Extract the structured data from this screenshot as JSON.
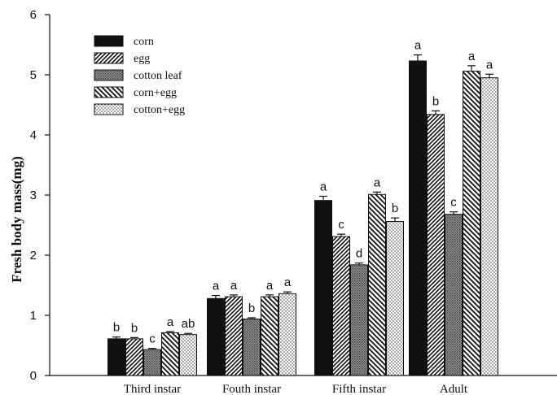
{
  "chart_data": {
    "type": "bar",
    "title": "",
    "xlabel": "",
    "ylabel": "Fresh body mass(mg)",
    "ylim": [
      0,
      6
    ],
    "yticks": [
      0,
      1,
      2,
      3,
      4,
      5,
      6
    ],
    "grid": false,
    "legend_position": "top-left",
    "categories": [
      "Third instar",
      "Fouth instar",
      "Fifth instar",
      "Adult"
    ],
    "series": [
      {
        "name": "corn",
        "pattern": "solid",
        "values": [
          0.61,
          1.28,
          2.91,
          5.23
        ],
        "errors": [
          0.03,
          0.05,
          0.07,
          0.1
        ],
        "letters": [
          "b",
          "a",
          "a",
          "a"
        ]
      },
      {
        "name": "egg",
        "pattern": "hatch-right",
        "values": [
          0.61,
          1.31,
          2.31,
          4.34
        ],
        "errors": [
          0.02,
          0.03,
          0.04,
          0.06
        ],
        "letters": [
          "b",
          "a",
          "c",
          "b"
        ]
      },
      {
        "name": "cotton leaf",
        "pattern": "crosshatch",
        "values": [
          0.43,
          0.94,
          1.84,
          2.68
        ],
        "errors": [
          0.02,
          0.02,
          0.03,
          0.04
        ],
        "letters": [
          "c",
          "b",
          "d",
          "c"
        ]
      },
      {
        "name": "corn+egg",
        "pattern": "hatch-left",
        "values": [
          0.71,
          1.31,
          3.01,
          5.06
        ],
        "errors": [
          0.02,
          0.03,
          0.04,
          0.09
        ],
        "letters": [
          "a",
          "a",
          "a",
          "a"
        ]
      },
      {
        "name": "cotton+egg",
        "pattern": "dots",
        "values": [
          0.68,
          1.36,
          2.56,
          4.95
        ],
        "errors": [
          0.02,
          0.03,
          0.06,
          0.06
        ],
        "letters": [
          "ab",
          "a",
          "b",
          "a"
        ]
      }
    ]
  }
}
